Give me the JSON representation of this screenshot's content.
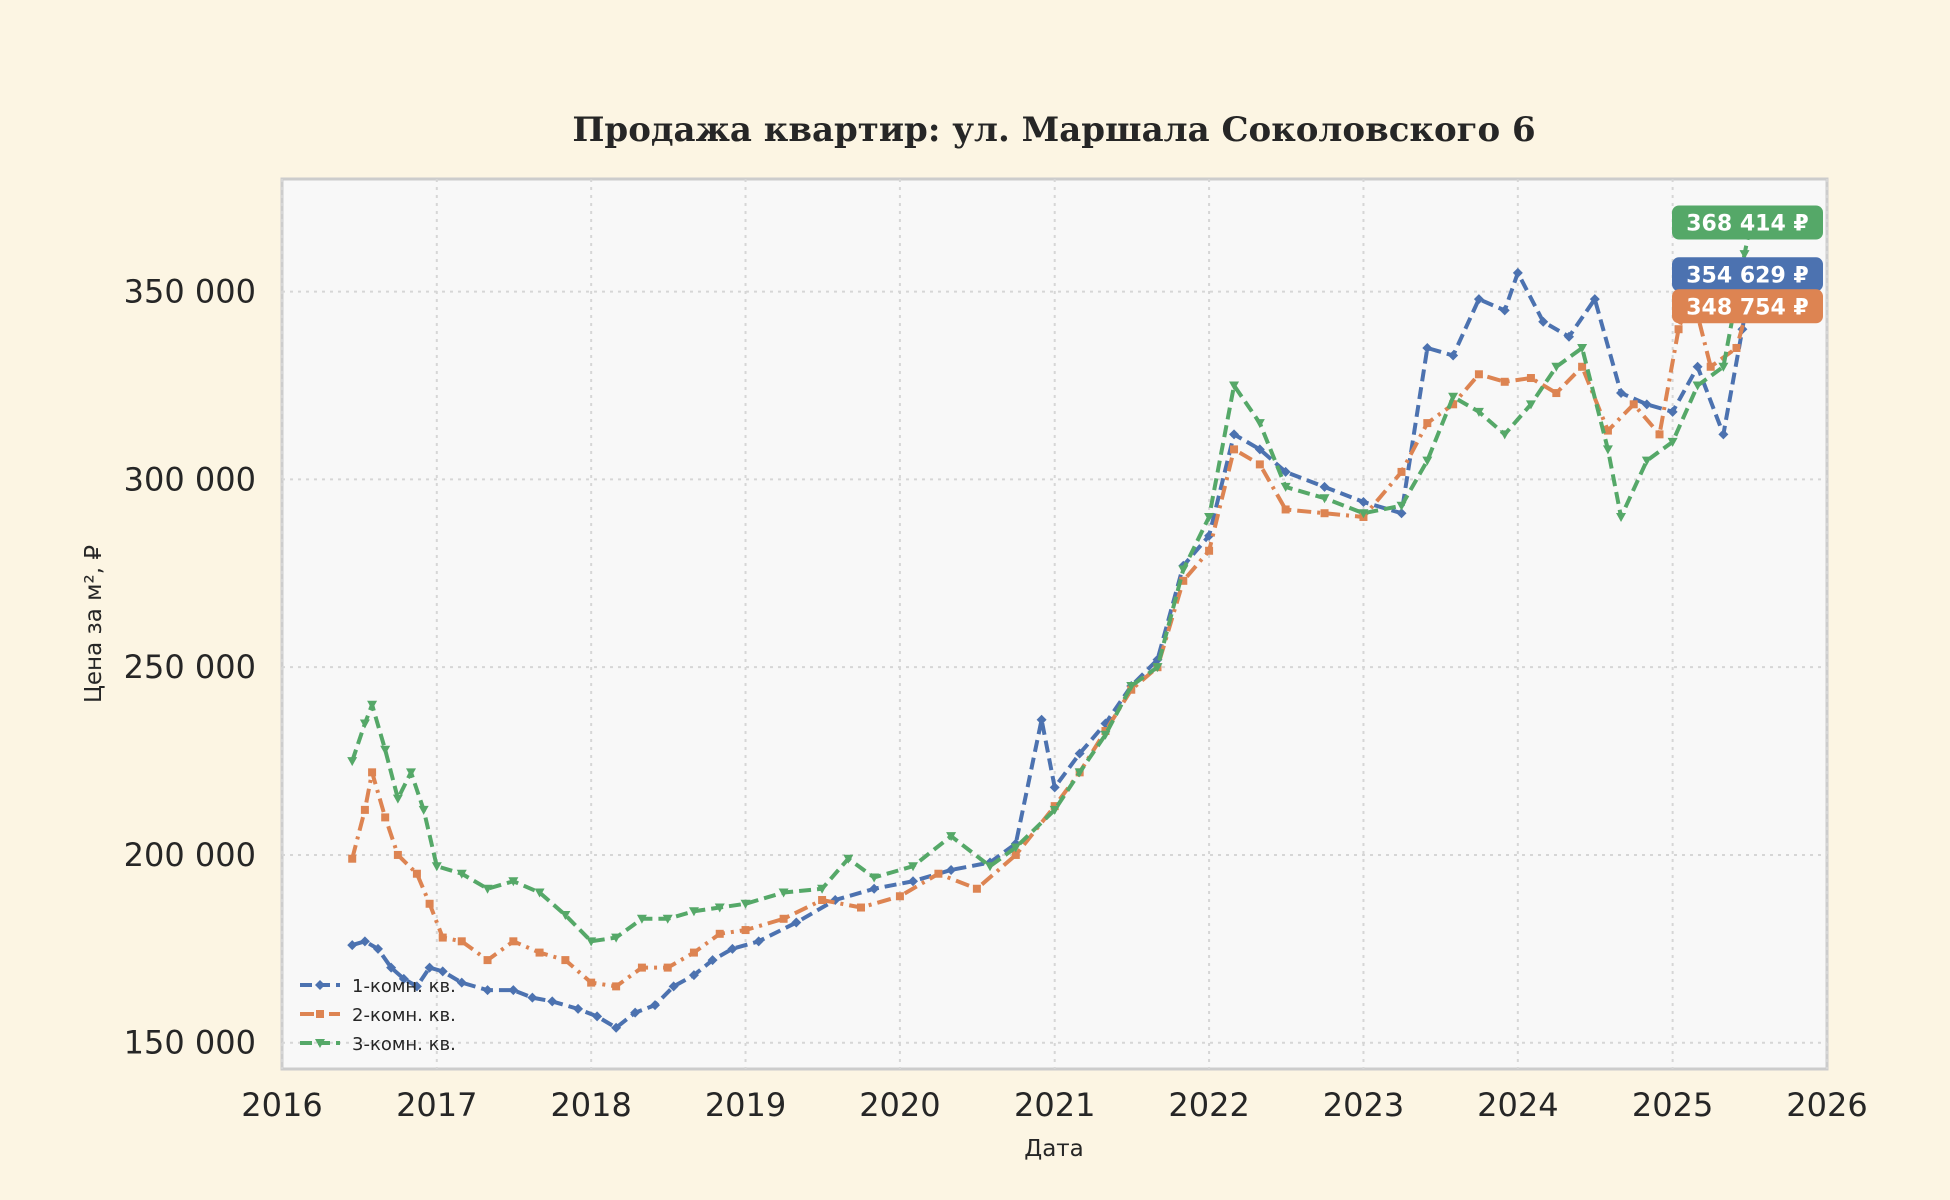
{
  "chart_data": {
    "type": "line",
    "title": "Продажа квартир: ул. Маршала Соколовского 6",
    "xlabel": "Дата",
    "ylabel": "Цена за м², ₽",
    "xlim": [
      "2016-01-01",
      "2026-01-01"
    ],
    "ylim": [
      143000,
      380000
    ],
    "x_ticks": [
      "2016",
      "2017",
      "2018",
      "2019",
      "2020",
      "2021",
      "2022",
      "2023",
      "2024",
      "2025",
      "2026"
    ],
    "y_ticks": [
      150000,
      200000,
      250000,
      300000,
      350000
    ],
    "y_tick_labels": [
      "150 000",
      "200 000",
      "250 000",
      "300 000",
      "350 000"
    ],
    "grid": true,
    "legend_position": "bottom-left",
    "series": [
      {
        "name": "1-комн. кв.",
        "color": "#4c72b0",
        "marker": "diamond",
        "line_style": "dashed",
        "end_label": "354 629 ₽",
        "points": [
          [
            "2016-06-15",
            176000
          ],
          [
            "2016-07-15",
            177000
          ],
          [
            "2016-08-15",
            175000
          ],
          [
            "2016-09-15",
            170000
          ],
          [
            "2016-10-15",
            167000
          ],
          [
            "2016-11-15",
            165000
          ],
          [
            "2016-12-15",
            170000
          ],
          [
            "2017-01-15",
            169000
          ],
          [
            "2017-03-01",
            166000
          ],
          [
            "2017-05-01",
            164000
          ],
          [
            "2017-07-01",
            164000
          ],
          [
            "2017-08-15",
            162000
          ],
          [
            "2017-10-01",
            161000
          ],
          [
            "2017-12-01",
            159000
          ],
          [
            "2018-01-15",
            157000
          ],
          [
            "2018-03-01",
            154000
          ],
          [
            "2018-04-15",
            158000
          ],
          [
            "2018-06-01",
            160000
          ],
          [
            "2018-07-15",
            165000
          ],
          [
            "2018-09-01",
            168000
          ],
          [
            "2018-10-15",
            172000
          ],
          [
            "2018-12-01",
            175000
          ],
          [
            "2019-02-01",
            177000
          ],
          [
            "2019-05-01",
            182000
          ],
          [
            "2019-08-01",
            188000
          ],
          [
            "2019-11-01",
            191000
          ],
          [
            "2020-02-01",
            193000
          ],
          [
            "2020-05-01",
            196000
          ],
          [
            "2020-08-01",
            198000
          ],
          [
            "2020-10-01",
            203000
          ],
          [
            "2020-12-01",
            236000
          ],
          [
            "2021-01-01",
            218000
          ],
          [
            "2021-03-01",
            227000
          ],
          [
            "2021-05-01",
            235000
          ],
          [
            "2021-07-01",
            245000
          ],
          [
            "2021-09-01",
            252000
          ],
          [
            "2021-11-01",
            277000
          ],
          [
            "2022-01-01",
            285000
          ],
          [
            "2022-03-01",
            312000
          ],
          [
            "2022-05-01",
            308000
          ],
          [
            "2022-07-01",
            302000
          ],
          [
            "2022-10-01",
            298000
          ],
          [
            "2023-01-01",
            294000
          ],
          [
            "2023-04-01",
            291000
          ],
          [
            "2023-06-01",
            335000
          ],
          [
            "2023-08-01",
            333000
          ],
          [
            "2023-10-01",
            348000
          ],
          [
            "2023-12-01",
            345000
          ],
          [
            "2024-01-01",
            355000
          ],
          [
            "2024-03-01",
            342000
          ],
          [
            "2024-05-01",
            338000
          ],
          [
            "2024-07-01",
            348000
          ],
          [
            "2024-09-01",
            323000
          ],
          [
            "2024-11-01",
            320000
          ],
          [
            "2025-01-01",
            318000
          ],
          [
            "2025-03-01",
            330000
          ],
          [
            "2025-05-01",
            312000
          ],
          [
            "2025-06-15",
            340000
          ],
          [
            "2025-07-05",
            354629
          ]
        ]
      },
      {
        "name": "2-комн. кв.",
        "color": "#dd8452",
        "marker": "square",
        "line_style": "dashdot",
        "end_label": "348 754 ₽",
        "points": [
          [
            "2016-06-15",
            199000
          ],
          [
            "2016-07-15",
            212000
          ],
          [
            "2016-08-01",
            222000
          ],
          [
            "2016-09-01",
            210000
          ],
          [
            "2016-10-01",
            200000
          ],
          [
            "2016-11-15",
            195000
          ],
          [
            "2016-12-15",
            187000
          ],
          [
            "2017-01-15",
            178000
          ],
          [
            "2017-03-01",
            177000
          ],
          [
            "2017-05-01",
            172000
          ],
          [
            "2017-07-01",
            177000
          ],
          [
            "2017-09-01",
            174000
          ],
          [
            "2017-11-01",
            172000
          ],
          [
            "2018-01-01",
            166000
          ],
          [
            "2018-03-01",
            165000
          ],
          [
            "2018-05-01",
            170000
          ],
          [
            "2018-07-01",
            170000
          ],
          [
            "2018-09-01",
            174000
          ],
          [
            "2018-11-01",
            179000
          ],
          [
            "2019-01-01",
            180000
          ],
          [
            "2019-04-01",
            183000
          ],
          [
            "2019-07-01",
            188000
          ],
          [
            "2019-10-01",
            186000
          ],
          [
            "2020-01-01",
            189000
          ],
          [
            "2020-04-01",
            195000
          ],
          [
            "2020-07-01",
            191000
          ],
          [
            "2020-10-01",
            200000
          ],
          [
            "2021-01-01",
            213000
          ],
          [
            "2021-03-01",
            222000
          ],
          [
            "2021-05-01",
            233000
          ],
          [
            "2021-07-01",
            244000
          ],
          [
            "2021-09-01",
            250000
          ],
          [
            "2021-11-01",
            273000
          ],
          [
            "2022-01-01",
            281000
          ],
          [
            "2022-03-01",
            308000
          ],
          [
            "2022-05-01",
            304000
          ],
          [
            "2022-07-01",
            292000
          ],
          [
            "2022-10-01",
            291000
          ],
          [
            "2023-01-01",
            290000
          ],
          [
            "2023-04-01",
            302000
          ],
          [
            "2023-06-01",
            315000
          ],
          [
            "2023-08-01",
            320000
          ],
          [
            "2023-10-01",
            328000
          ],
          [
            "2023-12-01",
            326000
          ],
          [
            "2024-02-01",
            327000
          ],
          [
            "2024-04-01",
            323000
          ],
          [
            "2024-06-01",
            330000
          ],
          [
            "2024-08-01",
            313000
          ],
          [
            "2024-10-01",
            320000
          ],
          [
            "2024-12-01",
            312000
          ],
          [
            "2025-01-15",
            340000
          ],
          [
            "2025-02-15",
            350000
          ],
          [
            "2025-04-01",
            330000
          ],
          [
            "2025-06-01",
            335000
          ],
          [
            "2025-07-05",
            348754
          ]
        ]
      },
      {
        "name": "3-комн. кв.",
        "color": "#55a868",
        "marker": "triangle-down",
        "line_style": "dashed",
        "end_label": "368 414 ₽",
        "points": [
          [
            "2016-06-15",
            225000
          ],
          [
            "2016-07-15",
            235000
          ],
          [
            "2016-08-01",
            240000
          ],
          [
            "2016-09-01",
            228000
          ],
          [
            "2016-10-01",
            215000
          ],
          [
            "2016-11-01",
            222000
          ],
          [
            "2016-12-01",
            212000
          ],
          [
            "2017-01-01",
            197000
          ],
          [
            "2017-03-01",
            195000
          ],
          [
            "2017-05-01",
            191000
          ],
          [
            "2017-07-01",
            193000
          ],
          [
            "2017-09-01",
            190000
          ],
          [
            "2017-11-01",
            184000
          ],
          [
            "2018-01-01",
            177000
          ],
          [
            "2018-03-01",
            178000
          ],
          [
            "2018-05-01",
            183000
          ],
          [
            "2018-07-01",
            183000
          ],
          [
            "2018-09-01",
            185000
          ],
          [
            "2018-11-01",
            186000
          ],
          [
            "2019-01-01",
            187000
          ],
          [
            "2019-04-01",
            190000
          ],
          [
            "2019-07-01",
            191000
          ],
          [
            "2019-09-01",
            199000
          ],
          [
            "2019-11-01",
            194000
          ],
          [
            "2020-02-01",
            197000
          ],
          [
            "2020-05-01",
            205000
          ],
          [
            "2020-08-01",
            197000
          ],
          [
            "2020-10-01",
            202000
          ],
          [
            "2021-01-01",
            212000
          ],
          [
            "2021-03-01",
            222000
          ],
          [
            "2021-05-01",
            232000
          ],
          [
            "2021-07-01",
            245000
          ],
          [
            "2021-09-01",
            250000
          ],
          [
            "2021-11-01",
            276000
          ],
          [
            "2022-01-01",
            290000
          ],
          [
            "2022-03-01",
            325000
          ],
          [
            "2022-05-01",
            315000
          ],
          [
            "2022-07-01",
            298000
          ],
          [
            "2022-10-01",
            295000
          ],
          [
            "2023-01-01",
            291000
          ],
          [
            "2023-04-01",
            293000
          ],
          [
            "2023-06-01",
            305000
          ],
          [
            "2023-08-01",
            322000
          ],
          [
            "2023-10-01",
            318000
          ],
          [
            "2023-12-01",
            312000
          ],
          [
            "2024-02-01",
            320000
          ],
          [
            "2024-04-01",
            330000
          ],
          [
            "2024-06-01",
            335000
          ],
          [
            "2024-08-01",
            308000
          ],
          [
            "2024-09-01",
            290000
          ],
          [
            "2024-11-01",
            305000
          ],
          [
            "2025-01-01",
            310000
          ],
          [
            "2025-03-01",
            325000
          ],
          [
            "2025-05-01",
            330000
          ],
          [
            "2025-06-20",
            360000
          ],
          [
            "2025-07-05",
            368414
          ]
        ]
      }
    ]
  }
}
